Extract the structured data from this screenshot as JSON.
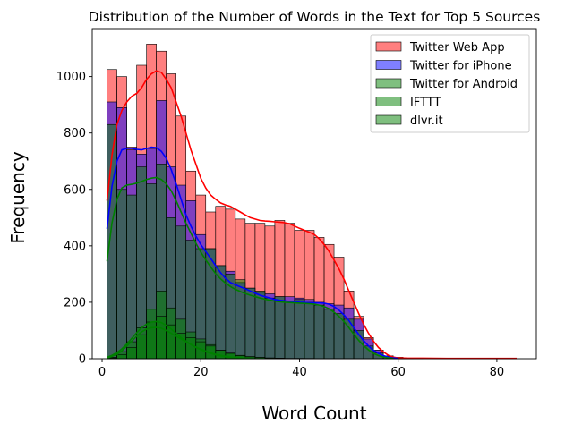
{
  "chart_data": {
    "type": "histogram",
    "title": "Distribution of the Number of Words in the Text for Top 5 Sources",
    "xlabel": "Word Count",
    "ylabel": "Frequency",
    "xlim": [
      -2,
      88
    ],
    "ylim": [
      0,
      1170
    ],
    "xticks": [
      0,
      20,
      40,
      60,
      80
    ],
    "yticks": [
      0,
      200,
      400,
      600,
      800,
      1000
    ],
    "bin_edges": [
      1,
      3,
      5,
      7,
      9,
      11,
      13,
      15,
      17,
      19,
      21,
      23,
      25,
      27,
      29,
      31,
      33,
      35,
      37,
      39,
      41,
      43,
      45,
      47,
      49,
      51,
      53,
      55,
      57,
      59,
      61,
      63,
      65
    ],
    "legend_position": "upper right",
    "grid": false,
    "series": [
      {
        "name": "Twitter Web App",
        "color": "#ff0000",
        "counts": [
          1025,
          1000,
          750,
          1040,
          1115,
          1090,
          1010,
          860,
          665,
          580,
          520,
          540,
          530,
          495,
          480,
          480,
          470,
          490,
          480,
          455,
          455,
          430,
          405,
          360,
          240,
          150,
          75,
          30,
          10,
          5,
          2,
          1
        ],
        "kde": [
          [
            1,
            560
          ],
          [
            2,
            720
          ],
          [
            3,
            830
          ],
          [
            4,
            880
          ],
          [
            5,
            910
          ],
          [
            6,
            930
          ],
          [
            7,
            940
          ],
          [
            8,
            960
          ],
          [
            9,
            990
          ],
          [
            10,
            1010
          ],
          [
            11,
            1020
          ],
          [
            12,
            1015
          ],
          [
            13,
            990
          ],
          [
            14,
            960
          ],
          [
            15,
            910
          ],
          [
            16,
            860
          ],
          [
            17,
            800
          ],
          [
            18,
            740
          ],
          [
            19,
            690
          ],
          [
            20,
            640
          ],
          [
            21,
            605
          ],
          [
            22,
            580
          ],
          [
            23,
            565
          ],
          [
            24,
            552
          ],
          [
            25,
            545
          ],
          [
            26,
            540
          ],
          [
            27,
            530
          ],
          [
            28,
            520
          ],
          [
            29,
            510
          ],
          [
            30,
            500
          ],
          [
            31,
            495
          ],
          [
            32,
            490
          ],
          [
            33,
            488
          ],
          [
            34,
            487
          ],
          [
            35,
            485
          ],
          [
            36,
            484
          ],
          [
            37,
            482
          ],
          [
            38,
            478
          ],
          [
            39,
            470
          ],
          [
            40,
            462
          ],
          [
            41,
            455
          ],
          [
            42,
            448
          ],
          [
            43,
            440
          ],
          [
            44,
            425
          ],
          [
            45,
            405
          ],
          [
            46,
            380
          ],
          [
            47,
            350
          ],
          [
            48,
            318
          ],
          [
            49,
            282
          ],
          [
            50,
            240
          ],
          [
            51,
            200
          ],
          [
            52,
            160
          ],
          [
            53,
            122
          ],
          [
            54,
            90
          ],
          [
            55,
            62
          ],
          [
            56,
            40
          ],
          [
            57,
            24
          ],
          [
            58,
            12
          ],
          [
            59,
            6
          ],
          [
            60,
            3
          ],
          [
            62,
            2
          ],
          [
            65,
            2
          ],
          [
            70,
            1
          ],
          [
            75,
            1
          ],
          [
            80,
            1
          ],
          [
            84,
            1
          ]
        ]
      },
      {
        "name": "Twitter for iPhone",
        "color": "#0000ff",
        "counts": [
          910,
          890,
          740,
          725,
          745,
          915,
          680,
          615,
          560,
          440,
          390,
          330,
          310,
          270,
          250,
          235,
          230,
          220,
          220,
          215,
          210,
          200,
          195,
          190,
          180,
          140,
          70,
          30,
          10,
          4,
          1,
          0
        ],
        "kde": [
          [
            1,
            460
          ],
          [
            2,
            610
          ],
          [
            3,
            700
          ],
          [
            4,
            740
          ],
          [
            5,
            745
          ],
          [
            6,
            745
          ],
          [
            7,
            742
          ],
          [
            8,
            740
          ],
          [
            9,
            745
          ],
          [
            10,
            750
          ],
          [
            11,
            748
          ],
          [
            12,
            735
          ],
          [
            13,
            710
          ],
          [
            14,
            670
          ],
          [
            15,
            620
          ],
          [
            16,
            565
          ],
          [
            17,
            510
          ],
          [
            18,
            470
          ],
          [
            19,
            435
          ],
          [
            20,
            405
          ],
          [
            21,
            380
          ],
          [
            22,
            355
          ],
          [
            23,
            330
          ],
          [
            24,
            305
          ],
          [
            25,
            285
          ],
          [
            26,
            270
          ],
          [
            27,
            262
          ],
          [
            28,
            255
          ],
          [
            29,
            248
          ],
          [
            30,
            240
          ],
          [
            31,
            232
          ],
          [
            32,
            225
          ],
          [
            33,
            220
          ],
          [
            34,
            215
          ],
          [
            35,
            210
          ],
          [
            36,
            207
          ],
          [
            37,
            205
          ],
          [
            38,
            203
          ],
          [
            39,
            202
          ],
          [
            40,
            200
          ],
          [
            41,
            199
          ],
          [
            42,
            198
          ],
          [
            43,
            198
          ],
          [
            44,
            198
          ],
          [
            45,
            197
          ],
          [
            46,
            193
          ],
          [
            47,
            185
          ],
          [
            48,
            172
          ],
          [
            49,
            155
          ],
          [
            50,
            135
          ],
          [
            51,
            110
          ],
          [
            52,
            86
          ],
          [
            53,
            64
          ],
          [
            54,
            45
          ],
          [
            55,
            30
          ],
          [
            56,
            19
          ],
          [
            57,
            11
          ],
          [
            58,
            6
          ],
          [
            59,
            3
          ],
          [
            60,
            1
          ]
        ]
      },
      {
        "name": "Twitter for Android",
        "color": "#008000",
        "counts": [
          830,
          600,
          580,
          680,
          620,
          690,
          500,
          470,
          420,
          390,
          390,
          330,
          300,
          280,
          250,
          240,
          215,
          220,
          200,
          210,
          200,
          190,
          175,
          160,
          140,
          100,
          45,
          20,
          8,
          3,
          1,
          0
        ],
        "kde": [
          [
            1,
            345
          ],
          [
            2,
            480
          ],
          [
            3,
            565
          ],
          [
            4,
            605
          ],
          [
            5,
            615
          ],
          [
            6,
            618
          ],
          [
            7,
            622
          ],
          [
            8,
            628
          ],
          [
            9,
            635
          ],
          [
            10,
            640
          ],
          [
            11,
            642
          ],
          [
            12,
            635
          ],
          [
            13,
            620
          ],
          [
            14,
            595
          ],
          [
            15,
            560
          ],
          [
            16,
            520
          ],
          [
            17,
            480
          ],
          [
            18,
            445
          ],
          [
            19,
            410
          ],
          [
            20,
            378
          ],
          [
            21,
            350
          ],
          [
            22,
            325
          ],
          [
            23,
            302
          ],
          [
            24,
            283
          ],
          [
            25,
            268
          ],
          [
            26,
            256
          ],
          [
            27,
            246
          ],
          [
            28,
            238
          ],
          [
            29,
            231
          ],
          [
            30,
            225
          ],
          [
            31,
            220
          ],
          [
            32,
            215
          ],
          [
            33,
            211
          ],
          [
            34,
            207
          ],
          [
            35,
            204
          ],
          [
            36,
            202
          ],
          [
            37,
            200
          ],
          [
            38,
            199
          ],
          [
            39,
            198
          ],
          [
            40,
            197
          ],
          [
            41,
            196
          ],
          [
            42,
            195
          ],
          [
            43,
            193
          ],
          [
            44,
            190
          ],
          [
            45,
            185
          ],
          [
            46,
            177
          ],
          [
            47,
            165
          ],
          [
            48,
            150
          ],
          [
            49,
            132
          ],
          [
            50,
            110
          ],
          [
            51,
            87
          ],
          [
            52,
            65
          ],
          [
            53,
            46
          ],
          [
            54,
            31
          ],
          [
            55,
            19
          ],
          [
            56,
            11
          ],
          [
            57,
            6
          ],
          [
            58,
            3
          ],
          [
            59,
            1
          ]
        ]
      },
      {
        "name": "IFTTT",
        "color": "#008000",
        "counts": [
          5,
          25,
          60,
          110,
          175,
          240,
          180,
          140,
          95,
          70,
          50,
          30,
          18,
          10,
          6,
          4,
          2,
          2,
          1,
          1,
          1,
          0,
          0,
          0,
          0,
          0,
          0,
          0,
          0,
          0,
          0,
          0
        ],
        "kde": [
          [
            1,
            5
          ],
          [
            2,
            12
          ],
          [
            3,
            22
          ],
          [
            4,
            35
          ],
          [
            5,
            52
          ],
          [
            6,
            72
          ],
          [
            7,
            92
          ],
          [
            8,
            110
          ],
          [
            9,
            122
          ],
          [
            10,
            130
          ],
          [
            11,
            132
          ],
          [
            12,
            128
          ],
          [
            13,
            118
          ],
          [
            14,
            105
          ],
          [
            15,
            90
          ],
          [
            16,
            75
          ],
          [
            17,
            62
          ],
          [
            18,
            50
          ],
          [
            19,
            40
          ],
          [
            20,
            32
          ],
          [
            21,
            25
          ],
          [
            22,
            19
          ],
          [
            23,
            14
          ],
          [
            24,
            10
          ],
          [
            25,
            7
          ],
          [
            26,
            5
          ],
          [
            27,
            4
          ],
          [
            28,
            3
          ],
          [
            29,
            2
          ],
          [
            30,
            1
          ]
        ]
      },
      {
        "name": "dlvr.it",
        "color": "#008000",
        "counts": [
          3,
          15,
          40,
          85,
          130,
          150,
          120,
          90,
          75,
          60,
          45,
          30,
          20,
          12,
          8,
          5,
          3,
          2,
          1,
          1,
          0,
          0,
          0,
          0,
          0,
          0,
          0,
          0,
          0,
          0,
          0,
          0
        ],
        "kde": [
          [
            1,
            3
          ],
          [
            2,
            8
          ],
          [
            3,
            16
          ],
          [
            4,
            28
          ],
          [
            5,
            45
          ],
          [
            6,
            62
          ],
          [
            7,
            80
          ],
          [
            8,
            95
          ],
          [
            9,
            105
          ],
          [
            10,
            110
          ],
          [
            11,
            111
          ],
          [
            12,
            108
          ],
          [
            13,
            100
          ],
          [
            14,
            90
          ],
          [
            15,
            80
          ],
          [
            16,
            70
          ],
          [
            17,
            60
          ],
          [
            18,
            51
          ],
          [
            19,
            42
          ],
          [
            20,
            34
          ],
          [
            21,
            27
          ],
          [
            22,
            21
          ],
          [
            23,
            16
          ],
          [
            24,
            12
          ],
          [
            25,
            9
          ],
          [
            26,
            6
          ],
          [
            27,
            4
          ],
          [
            28,
            3
          ],
          [
            29,
            2
          ],
          [
            30,
            1
          ]
        ]
      }
    ]
  }
}
